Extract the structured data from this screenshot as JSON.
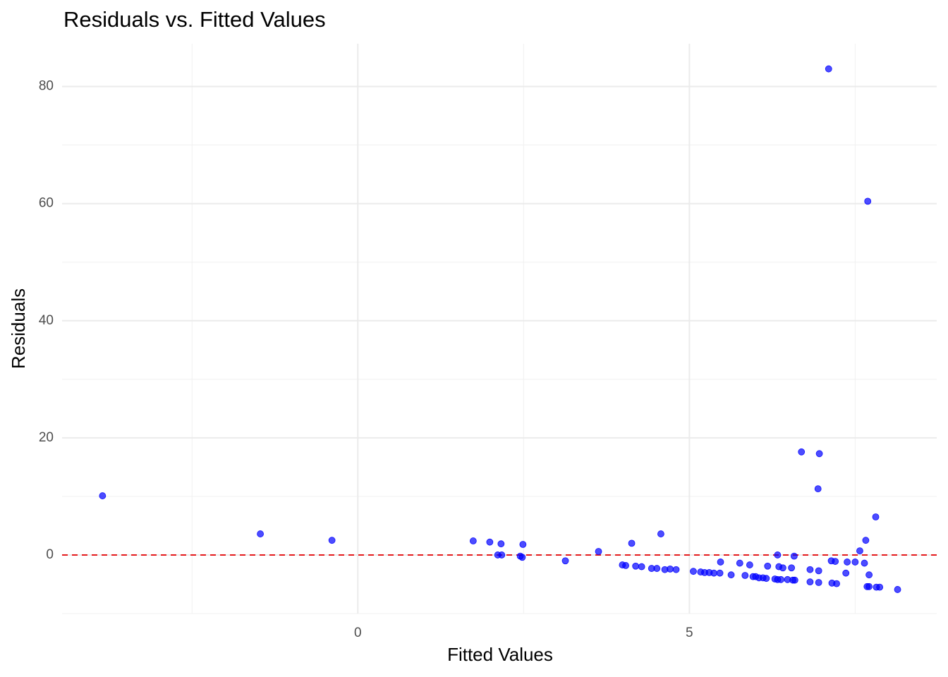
{
  "chart_data": {
    "type": "scatter",
    "title": "Residuals vs. Fitted Values",
    "x_label": "Fitted Values",
    "y_label": "Residuals",
    "x": [
      -3.85,
      -1.47,
      -0.39,
      1.74,
      1.99,
      2.16,
      2.11,
      2.17,
      2.49,
      2.45,
      2.48,
      3.13,
      3.63,
      3.99,
      4.04,
      4.13,
      4.19,
      4.28,
      4.43,
      4.51,
      4.57,
      4.63,
      4.71,
      4.8,
      5.06,
      5.17,
      5.23,
      5.3,
      5.37,
      5.46,
      5.47,
      5.63,
      5.76,
      5.84,
      5.91,
      5.96,
      6.0,
      6.05,
      6.11,
      6.16,
      6.18,
      6.29,
      6.33,
      6.33,
      6.35,
      6.38,
      6.41,
      6.48,
      6.54,
      6.56,
      6.59,
      6.58,
      6.69,
      6.82,
      6.82,
      6.95,
      6.95,
      6.94,
      6.96,
      7.1,
      7.14,
      7.2,
      7.15,
      7.22,
      7.36,
      7.38,
      7.5,
      7.57,
      7.64,
      7.66,
      7.69,
      7.71,
      7.68,
      7.71,
      7.81,
      7.82,
      7.87,
      8.14
    ],
    "values": [
      10.1,
      3.6,
      2.5,
      2.4,
      2.2,
      1.9,
      0,
      0,
      1.8,
      -0.2,
      -0.4,
      -1.0,
      0.6,
      -1.7,
      -1.8,
      2.0,
      -1.9,
      -2.0,
      -2.3,
      -2.3,
      3.6,
      -2.5,
      -2.4,
      -2.5,
      -2.8,
      -2.9,
      -3.0,
      -3.0,
      -3.1,
      -3.1,
      -1.2,
      -3.4,
      -1.4,
      -3.5,
      -1.7,
      -3.7,
      -3.7,
      -3.9,
      -3.9,
      -4.0,
      -1.9,
      -4.1,
      0,
      -4.2,
      -2.0,
      -4.2,
      -2.2,
      -4.2,
      -2.2,
      -4.3,
      -4.3,
      -0.2,
      17.6,
      -2.5,
      -4.6,
      -2.7,
      -4.7,
      11.3,
      17.3,
      83.0,
      -1.0,
      -1.1,
      -4.8,
      -4.9,
      -3.1,
      -1.2,
      -1.2,
      0.7,
      -1.4,
      2.5,
      60.4,
      -3.4,
      -5.4,
      -5.4,
      6.5,
      -5.5,
      -5.5,
      -5.9
    ],
    "color": "#0000ff",
    "xlim": [
      -4.46,
      8.73
    ],
    "ylim": [
      -10,
      87.3
    ],
    "xticks": [
      0,
      5
    ],
    "yticks": [
      0,
      20,
      40,
      60,
      80
    ],
    "x_minor_grid": [
      -2.5,
      2.5,
      7.5
    ],
    "y_minor_grid": [
      -10,
      10,
      30,
      50,
      70
    ],
    "reference_line": {
      "y": 0,
      "color": "#e31a1c",
      "dashed": true
    },
    "grid": true
  }
}
